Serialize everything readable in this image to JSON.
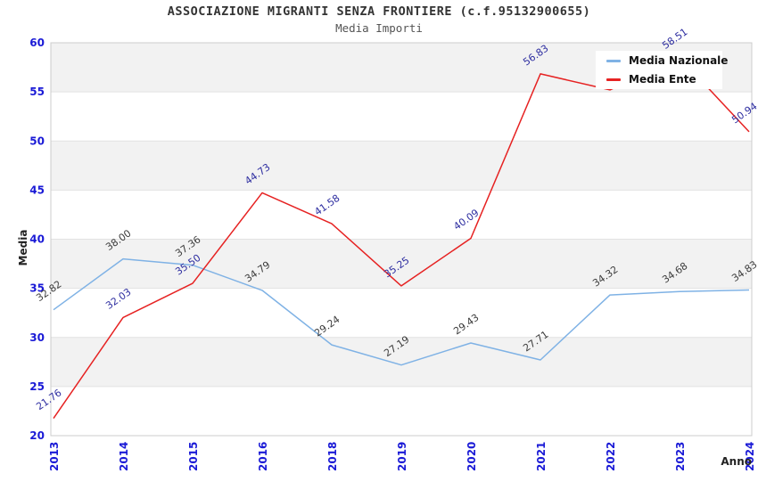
{
  "header": {
    "title": "ASSOCIAZIONE MIGRANTI SENZA FRONTIERE (c.f.95132900655)",
    "subtitle": "Media Importi"
  },
  "legend": {
    "items": [
      {
        "label": "Media Nazionale",
        "color": "#7fb2e5"
      },
      {
        "label": "Media Ente",
        "color": "#e62222"
      }
    ]
  },
  "axes": {
    "y_title": "Media",
    "x_title": "Anno",
    "tick_color": "#1a1ad6"
  },
  "chart_data": {
    "type": "line",
    "title": "ASSOCIAZIONE MIGRANTI SENZA FRONTIERE (c.f.95132900655)",
    "subtitle": "Media Importi",
    "xlabel": "Anno",
    "ylabel": "Media",
    "ylim": [
      20,
      60
    ],
    "y_ticks": [
      60,
      55,
      50,
      45,
      40,
      35,
      30,
      25,
      20
    ],
    "categories": [
      "2013",
      "2014",
      "2015",
      "2016",
      "2018",
      "2019",
      "2020",
      "2021",
      "2022",
      "2023",
      "2024"
    ],
    "series": [
      {
        "name": "Media Nazionale",
        "color": "#7fb2e5",
        "label_color": "#3c3c3c",
        "values": [
          32.82,
          38.0,
          37.36,
          34.79,
          29.24,
          27.19,
          29.43,
          27.71,
          34.32,
          34.68,
          34.83
        ]
      },
      {
        "name": "Media Ente",
        "color": "#e62222",
        "label_color": "#2d2da0",
        "values": [
          21.76,
          32.03,
          35.5,
          44.73,
          41.58,
          35.25,
          40.09,
          56.83,
          55.2,
          58.51,
          50.94
        ],
        "hidden_label_indices": [
          8
        ]
      }
    ],
    "grid": true,
    "banded_background": true,
    "band_color": "#f2f2f2",
    "legend_position": "top-right"
  }
}
